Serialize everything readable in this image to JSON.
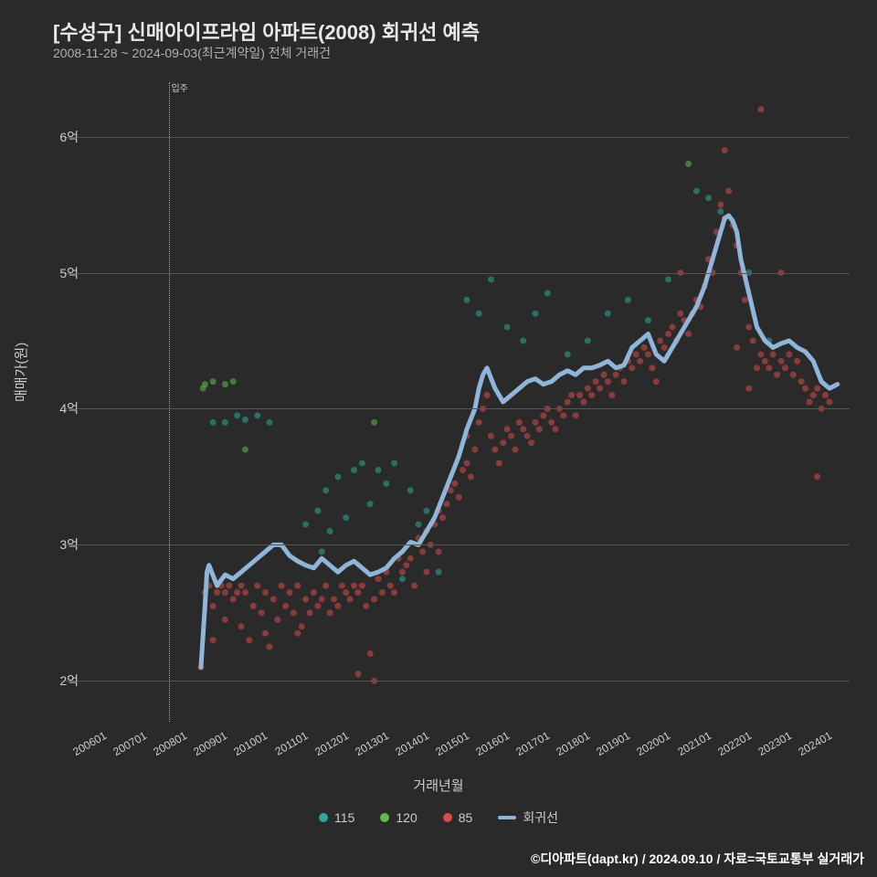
{
  "title": "[수성구] 신매아이프라임 아파트(2008) 회귀선 예측",
  "subtitle": "2008-11-28 ~ 2024-09-03(최근계약일) 전체 거래건",
  "xlabel": "거래년월",
  "ylabel": "매매가(원)",
  "footer": "©디아파트(dapt.kr) / 2024.09.10 / 자료=국토교통부 실거래가",
  "background_color": "#2a2a2a",
  "chart": {
    "type": "scatter_line",
    "x_domain": [
      2005.5,
      2025.0
    ],
    "y_domain": [
      1.7,
      6.4
    ],
    "yticks": [
      {
        "v": 2,
        "label": "2억"
      },
      {
        "v": 3,
        "label": "3억"
      },
      {
        "v": 4,
        "label": "4억"
      },
      {
        "v": 5,
        "label": "5억"
      },
      {
        "v": 6,
        "label": "6억"
      }
    ],
    "xticks": [
      {
        "v": 2006.0,
        "label": "200601"
      },
      {
        "v": 2007.0,
        "label": "200701"
      },
      {
        "v": 2008.0,
        "label": "200801"
      },
      {
        "v": 2009.0,
        "label": "200901"
      },
      {
        "v": 2010.0,
        "label": "201001"
      },
      {
        "v": 2011.0,
        "label": "201101"
      },
      {
        "v": 2012.0,
        "label": "201201"
      },
      {
        "v": 2013.0,
        "label": "201301"
      },
      {
        "v": 2014.0,
        "label": "201401"
      },
      {
        "v": 2015.0,
        "label": "201501"
      },
      {
        "v": 2016.0,
        "label": "201601"
      },
      {
        "v": 2017.0,
        "label": "201701"
      },
      {
        "v": 2018.0,
        "label": "201801"
      },
      {
        "v": 2019.0,
        "label": "201901"
      },
      {
        "v": 2020.0,
        "label": "202001"
      },
      {
        "v": 2021.0,
        "label": "202101"
      },
      {
        "v": 2022.0,
        "label": "202201"
      },
      {
        "v": 2023.0,
        "label": "202301"
      },
      {
        "v": 2024.0,
        "label": "202401"
      }
    ],
    "grid_color": "#555555",
    "vline": {
      "x": 2008.1,
      "label": "입주"
    },
    "series_colors": {
      "115": "#2aa89b",
      "120": "#5fbb47",
      "85": "#d94a4a",
      "regression": "#8fb5d9"
    },
    "regression_stroke_width": 5,
    "dot_radius": 3.5,
    "legend": [
      {
        "key": "115",
        "label": "115",
        "type": "dot"
      },
      {
        "key": "120",
        "label": "120",
        "type": "dot"
      },
      {
        "key": "85",
        "label": "85",
        "type": "dot"
      },
      {
        "key": "regression",
        "label": "회귀선",
        "type": "line"
      }
    ],
    "scatter": {
      "85": [
        [
          2008.9,
          2.1
        ],
        [
          2009.0,
          2.65
        ],
        [
          2009.1,
          2.7
        ],
        [
          2009.2,
          2.55
        ],
        [
          2009.2,
          2.3
        ],
        [
          2009.3,
          2.65
        ],
        [
          2009.4,
          2.7
        ],
        [
          2009.5,
          2.65
        ],
        [
          2009.5,
          2.45
        ],
        [
          2009.6,
          2.7
        ],
        [
          2009.7,
          2.6
        ],
        [
          2009.8,
          2.65
        ],
        [
          2009.9,
          2.7
        ],
        [
          2009.9,
          2.4
        ],
        [
          2010.0,
          2.65
        ],
        [
          2010.1,
          2.3
        ],
        [
          2010.2,
          2.55
        ],
        [
          2010.3,
          2.7
        ],
        [
          2010.4,
          2.5
        ],
        [
          2010.5,
          2.35
        ],
        [
          2010.5,
          2.65
        ],
        [
          2010.6,
          2.25
        ],
        [
          2010.7,
          2.6
        ],
        [
          2010.8,
          2.45
        ],
        [
          2010.9,
          2.7
        ],
        [
          2011.0,
          2.55
        ],
        [
          2011.1,
          2.65
        ],
        [
          2011.2,
          2.5
        ],
        [
          2011.3,
          2.35
        ],
        [
          2011.3,
          2.7
        ],
        [
          2011.4,
          2.4
        ],
        [
          2011.5,
          2.6
        ],
        [
          2011.6,
          2.5
        ],
        [
          2011.7,
          2.65
        ],
        [
          2011.8,
          2.55
        ],
        [
          2011.9,
          2.6
        ],
        [
          2012.0,
          2.7
        ],
        [
          2012.1,
          2.5
        ],
        [
          2012.2,
          2.6
        ],
        [
          2012.3,
          2.55
        ],
        [
          2012.4,
          2.7
        ],
        [
          2012.5,
          2.65
        ],
        [
          2012.6,
          2.6
        ],
        [
          2012.7,
          2.7
        ],
        [
          2012.8,
          2.65
        ],
        [
          2012.8,
          2.05
        ],
        [
          2012.9,
          2.7
        ],
        [
          2013.0,
          2.55
        ],
        [
          2013.1,
          2.2
        ],
        [
          2013.2,
          2.6
        ],
        [
          2013.2,
          2.0
        ],
        [
          2013.3,
          2.75
        ],
        [
          2013.4,
          2.65
        ],
        [
          2013.5,
          2.8
        ],
        [
          2013.6,
          2.7
        ],
        [
          2013.7,
          2.65
        ],
        [
          2013.8,
          2.9
        ],
        [
          2013.9,
          2.8
        ],
        [
          2014.0,
          2.85
        ],
        [
          2014.1,
          2.9
        ],
        [
          2014.2,
          2.7
        ],
        [
          2014.3,
          3.05
        ],
        [
          2014.4,
          2.95
        ],
        [
          2014.5,
          3.1
        ],
        [
          2014.5,
          2.8
        ],
        [
          2014.6,
          3.0
        ],
        [
          2014.7,
          3.15
        ],
        [
          2014.8,
          3.25
        ],
        [
          2014.8,
          2.95
        ],
        [
          2014.9,
          3.2
        ],
        [
          2015.0,
          3.3
        ],
        [
          2015.1,
          3.4
        ],
        [
          2015.2,
          3.45
        ],
        [
          2015.3,
          3.35
        ],
        [
          2015.4,
          3.55
        ],
        [
          2015.5,
          3.6
        ],
        [
          2015.5,
          3.8
        ],
        [
          2015.6,
          3.5
        ],
        [
          2015.7,
          3.7
        ],
        [
          2015.8,
          3.9
        ],
        [
          2015.9,
          4.0
        ],
        [
          2016.0,
          4.1
        ],
        [
          2016.1,
          3.8
        ],
        [
          2016.2,
          3.7
        ],
        [
          2016.3,
          3.6
        ],
        [
          2016.4,
          3.75
        ],
        [
          2016.5,
          3.85
        ],
        [
          2016.6,
          3.8
        ],
        [
          2016.7,
          3.7
        ],
        [
          2016.8,
          3.9
        ],
        [
          2016.9,
          3.85
        ],
        [
          2017.0,
          3.8
        ],
        [
          2017.1,
          3.75
        ],
        [
          2017.2,
          3.9
        ],
        [
          2017.3,
          3.85
        ],
        [
          2017.4,
          3.95
        ],
        [
          2017.5,
          4.0
        ],
        [
          2017.6,
          3.9
        ],
        [
          2017.7,
          3.85
        ],
        [
          2017.8,
          4.0
        ],
        [
          2017.9,
          3.95
        ],
        [
          2018.0,
          4.05
        ],
        [
          2018.1,
          4.1
        ],
        [
          2018.2,
          3.95
        ],
        [
          2018.3,
          4.1
        ],
        [
          2018.4,
          4.05
        ],
        [
          2018.5,
          4.15
        ],
        [
          2018.6,
          4.1
        ],
        [
          2018.7,
          4.2
        ],
        [
          2018.8,
          4.15
        ],
        [
          2018.9,
          4.25
        ],
        [
          2019.0,
          4.2
        ],
        [
          2019.1,
          4.1
        ],
        [
          2019.2,
          4.25
        ],
        [
          2019.3,
          4.3
        ],
        [
          2019.4,
          4.2
        ],
        [
          2019.5,
          4.35
        ],
        [
          2019.6,
          4.3
        ],
        [
          2019.7,
          4.4
        ],
        [
          2019.8,
          4.35
        ],
        [
          2019.9,
          4.45
        ],
        [
          2020.0,
          4.4
        ],
        [
          2020.1,
          4.3
        ],
        [
          2020.2,
          4.2
        ],
        [
          2020.3,
          4.5
        ],
        [
          2020.4,
          4.45
        ],
        [
          2020.5,
          4.55
        ],
        [
          2020.6,
          4.6
        ],
        [
          2020.7,
          4.5
        ],
        [
          2020.8,
          4.7
        ],
        [
          2020.8,
          5.0
        ],
        [
          2020.9,
          4.65
        ],
        [
          2021.0,
          4.55
        ],
        [
          2021.1,
          4.7
        ],
        [
          2021.2,
          4.8
        ],
        [
          2021.3,
          4.75
        ],
        [
          2021.4,
          4.9
        ],
        [
          2021.5,
          5.1
        ],
        [
          2021.6,
          5.0
        ],
        [
          2021.7,
          5.3
        ],
        [
          2021.8,
          5.5
        ],
        [
          2021.9,
          5.4
        ],
        [
          2021.9,
          5.9
        ],
        [
          2022.0,
          5.6
        ],
        [
          2022.1,
          5.35
        ],
        [
          2022.2,
          5.2
        ],
        [
          2022.2,
          4.45
        ],
        [
          2022.3,
          5.0
        ],
        [
          2022.4,
          4.8
        ],
        [
          2022.5,
          4.6
        ],
        [
          2022.5,
          4.15
        ],
        [
          2022.6,
          4.5
        ],
        [
          2022.7,
          4.3
        ],
        [
          2022.8,
          4.4
        ],
        [
          2022.8,
          6.2
        ],
        [
          2022.9,
          4.35
        ],
        [
          2023.0,
          4.3
        ],
        [
          2023.1,
          4.4
        ],
        [
          2023.2,
          4.25
        ],
        [
          2023.3,
          4.35
        ],
        [
          2023.3,
          5.0
        ],
        [
          2023.4,
          4.3
        ],
        [
          2023.5,
          4.4
        ],
        [
          2023.6,
          4.25
        ],
        [
          2023.7,
          4.35
        ],
        [
          2023.8,
          4.2
        ],
        [
          2023.9,
          4.15
        ],
        [
          2024.0,
          4.05
        ],
        [
          2024.1,
          4.1
        ],
        [
          2024.2,
          4.15
        ],
        [
          2024.2,
          3.5
        ],
        [
          2024.3,
          4.0
        ],
        [
          2024.4,
          4.1
        ],
        [
          2024.5,
          4.05
        ]
      ],
      "115": [
        [
          2009.2,
          3.9
        ],
        [
          2009.5,
          3.9
        ],
        [
          2009.8,
          3.95
        ],
        [
          2010.0,
          3.92
        ],
        [
          2010.3,
          3.95
        ],
        [
          2010.6,
          3.9
        ],
        [
          2011.5,
          3.15
        ],
        [
          2011.8,
          3.25
        ],
        [
          2011.9,
          2.95
        ],
        [
          2012.0,
          3.4
        ],
        [
          2012.1,
          3.1
        ],
        [
          2012.3,
          3.5
        ],
        [
          2012.5,
          3.2
        ],
        [
          2012.7,
          3.55
        ],
        [
          2012.9,
          3.6
        ],
        [
          2013.1,
          3.3
        ],
        [
          2013.3,
          3.55
        ],
        [
          2013.5,
          3.45
        ],
        [
          2013.7,
          3.6
        ],
        [
          2013.9,
          2.75
        ],
        [
          2014.1,
          3.4
        ],
        [
          2014.3,
          3.15
        ],
        [
          2014.5,
          3.25
        ],
        [
          2014.8,
          2.8
        ],
        [
          2015.5,
          4.8
        ],
        [
          2015.8,
          4.7
        ],
        [
          2016.1,
          4.95
        ],
        [
          2016.5,
          4.6
        ],
        [
          2016.9,
          4.5
        ],
        [
          2017.2,
          4.7
        ],
        [
          2017.5,
          4.85
        ],
        [
          2018.0,
          4.4
        ],
        [
          2018.5,
          4.5
        ],
        [
          2019.0,
          4.7
        ],
        [
          2019.5,
          4.8
        ],
        [
          2020.0,
          4.65
        ],
        [
          2020.5,
          4.95
        ],
        [
          2021.2,
          5.6
        ],
        [
          2021.5,
          5.55
        ],
        [
          2021.8,
          5.45
        ],
        [
          2022.5,
          5.0
        ],
        [
          2023.0,
          4.5
        ]
      ],
      "120": [
        [
          2008.95,
          4.15
        ],
        [
          2009.0,
          4.18
        ],
        [
          2009.2,
          4.2
        ],
        [
          2009.5,
          4.18
        ],
        [
          2009.7,
          4.2
        ],
        [
          2010.0,
          3.7
        ],
        [
          2013.2,
          3.9
        ],
        [
          2021.0,
          5.8
        ]
      ]
    },
    "regression_line": [
      [
        2008.9,
        2.1
      ],
      [
        2009.0,
        2.55
      ],
      [
        2009.05,
        2.8
      ],
      [
        2009.1,
        2.85
      ],
      [
        2009.3,
        2.7
      ],
      [
        2009.5,
        2.78
      ],
      [
        2009.7,
        2.75
      ],
      [
        2009.9,
        2.8
      ],
      [
        2010.1,
        2.85
      ],
      [
        2010.3,
        2.9
      ],
      [
        2010.5,
        2.95
      ],
      [
        2010.7,
        3.0
      ],
      [
        2010.9,
        3.0
      ],
      [
        2011.1,
        2.92
      ],
      [
        2011.3,
        2.88
      ],
      [
        2011.5,
        2.85
      ],
      [
        2011.7,
        2.83
      ],
      [
        2011.9,
        2.9
      ],
      [
        2012.1,
        2.85
      ],
      [
        2012.3,
        2.8
      ],
      [
        2012.5,
        2.85
      ],
      [
        2012.7,
        2.88
      ],
      [
        2012.9,
        2.83
      ],
      [
        2013.1,
        2.78
      ],
      [
        2013.3,
        2.8
      ],
      [
        2013.5,
        2.83
      ],
      [
        2013.7,
        2.9
      ],
      [
        2013.9,
        2.95
      ],
      [
        2014.1,
        3.02
      ],
      [
        2014.3,
        3.0
      ],
      [
        2014.5,
        3.1
      ],
      [
        2014.7,
        3.2
      ],
      [
        2014.9,
        3.35
      ],
      [
        2015.1,
        3.5
      ],
      [
        2015.3,
        3.65
      ],
      [
        2015.5,
        3.85
      ],
      [
        2015.7,
        4.0
      ],
      [
        2015.8,
        4.15
      ],
      [
        2015.9,
        4.25
      ],
      [
        2016.0,
        4.3
      ],
      [
        2016.2,
        4.15
      ],
      [
        2016.4,
        4.05
      ],
      [
        2016.6,
        4.1
      ],
      [
        2016.8,
        4.15
      ],
      [
        2017.0,
        4.2
      ],
      [
        2017.2,
        4.22
      ],
      [
        2017.4,
        4.18
      ],
      [
        2017.6,
        4.2
      ],
      [
        2017.8,
        4.25
      ],
      [
        2018.0,
        4.28
      ],
      [
        2018.2,
        4.25
      ],
      [
        2018.4,
        4.3
      ],
      [
        2018.6,
        4.3
      ],
      [
        2018.8,
        4.32
      ],
      [
        2019.0,
        4.35
      ],
      [
        2019.2,
        4.3
      ],
      [
        2019.4,
        4.32
      ],
      [
        2019.6,
        4.45
      ],
      [
        2019.8,
        4.5
      ],
      [
        2020.0,
        4.55
      ],
      [
        2020.2,
        4.4
      ],
      [
        2020.4,
        4.35
      ],
      [
        2020.6,
        4.45
      ],
      [
        2020.8,
        4.55
      ],
      [
        2021.0,
        4.65
      ],
      [
        2021.2,
        4.75
      ],
      [
        2021.4,
        4.9
      ],
      [
        2021.6,
        5.1
      ],
      [
        2021.8,
        5.3
      ],
      [
        2021.9,
        5.4
      ],
      [
        2022.0,
        5.42
      ],
      [
        2022.1,
        5.38
      ],
      [
        2022.2,
        5.3
      ],
      [
        2022.3,
        5.1
      ],
      [
        2022.5,
        4.85
      ],
      [
        2022.7,
        4.6
      ],
      [
        2022.9,
        4.5
      ],
      [
        2023.1,
        4.45
      ],
      [
        2023.3,
        4.48
      ],
      [
        2023.5,
        4.5
      ],
      [
        2023.7,
        4.45
      ],
      [
        2023.9,
        4.42
      ],
      [
        2024.1,
        4.35
      ],
      [
        2024.3,
        4.2
      ],
      [
        2024.5,
        4.15
      ],
      [
        2024.7,
        4.18
      ]
    ]
  }
}
